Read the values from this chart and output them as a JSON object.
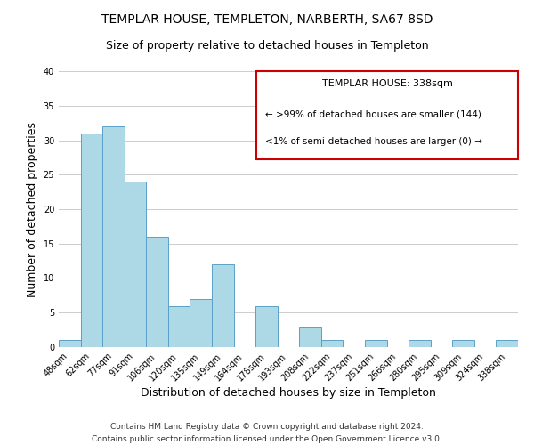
{
  "title": "TEMPLAR HOUSE, TEMPLETON, NARBERTH, SA67 8SD",
  "subtitle": "Size of property relative to detached houses in Templeton",
  "xlabel": "Distribution of detached houses by size in Templeton",
  "ylabel": "Number of detached properties",
  "bin_labels": [
    "48sqm",
    "62sqm",
    "77sqm",
    "91sqm",
    "106sqm",
    "120sqm",
    "135sqm",
    "149sqm",
    "164sqm",
    "178sqm",
    "193sqm",
    "208sqm",
    "222sqm",
    "237sqm",
    "251sqm",
    "266sqm",
    "280sqm",
    "295sqm",
    "309sqm",
    "324sqm",
    "338sqm"
  ],
  "bar_heights": [
    1,
    31,
    32,
    24,
    16,
    6,
    7,
    12,
    0,
    6,
    0,
    3,
    1,
    0,
    1,
    0,
    1,
    0,
    1,
    0,
    1
  ],
  "bar_color": "#add8e6",
  "bar_edge_color": "#5aa0c8",
  "ylim": [
    0,
    40
  ],
  "annotation_title": "TEMPLAR HOUSE: 338sqm",
  "annotation_line1": "← >99% of detached houses are smaller (144)",
  "annotation_line2": "<1% of semi-detached houses are larger (0) →",
  "annotation_box_color": "#ffffff",
  "annotation_border_color": "#cc0000",
  "footer_line1": "Contains HM Land Registry data © Crown copyright and database right 2024.",
  "footer_line2": "Contains public sector information licensed under the Open Government Licence v3.0.",
  "title_fontsize": 10,
  "subtitle_fontsize": 9,
  "axis_label_fontsize": 9,
  "tick_fontsize": 7,
  "annotation_title_fontsize": 8,
  "annotation_text_fontsize": 7.5,
  "footer_fontsize": 6.5,
  "grid_color": "#cccccc",
  "background_color": "#ffffff"
}
